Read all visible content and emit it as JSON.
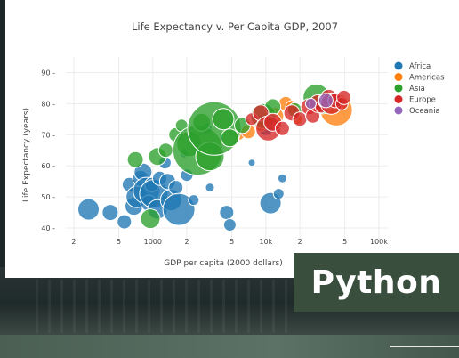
{
  "chart_data": {
    "type": "scatter",
    "title": "Life Expectancy v. Per Capita GDP, 2007",
    "xlabel": "GDP per capita (2000 dollars)",
    "ylabel": "Life Expectancy (years)",
    "x_scale": "log",
    "xlim": [
      170,
      120000
    ],
    "ylim": [
      36,
      95
    ],
    "x_ticks": [
      {
        "value": 200,
        "label": "2"
      },
      {
        "value": 500,
        "label": "5"
      },
      {
        "value": 1000,
        "label": "1000"
      },
      {
        "value": 2000,
        "label": "2"
      },
      {
        "value": 5000,
        "label": "5"
      },
      {
        "value": 10000,
        "label": "10k"
      },
      {
        "value": 20000,
        "label": "2"
      },
      {
        "value": 50000,
        "label": "5"
      },
      {
        "value": 100000,
        "label": "100k"
      }
    ],
    "y_ticks": [
      40,
      50,
      60,
      70,
      80,
      90
    ],
    "grid": true,
    "legend_position": "right",
    "series": [
      {
        "name": "Africa",
        "color": "#1f77b4",
        "points": [
          [
            270,
            46,
            12
          ],
          [
            420,
            45,
            9
          ],
          [
            560,
            42,
            8
          ],
          [
            620,
            54,
            8
          ],
          [
            680,
            47,
            10
          ],
          [
            720,
            50,
            12
          ],
          [
            780,
            56,
            9
          ],
          [
            820,
            58,
            10
          ],
          [
            880,
            52,
            15
          ],
          [
            920,
            48,
            9
          ],
          [
            980,
            54,
            8
          ],
          [
            1020,
            51,
            16
          ],
          [
            1100,
            46,
            11
          ],
          [
            1150,
            56,
            8
          ],
          [
            1280,
            61,
            7
          ],
          [
            1350,
            55,
            9
          ],
          [
            1450,
            49,
            12
          ],
          [
            1600,
            53,
            8
          ],
          [
            1700,
            46,
            18
          ],
          [
            2000,
            57,
            7
          ],
          [
            2300,
            49,
            6
          ],
          [
            3200,
            53,
            5
          ],
          [
            4500,
            45,
            8
          ],
          [
            4800,
            41,
            7
          ],
          [
            7500,
            61,
            4
          ],
          [
            11000,
            48,
            12
          ],
          [
            13000,
            51,
            6
          ],
          [
            14000,
            56,
            5
          ],
          [
            1900,
            64,
            5
          ],
          [
            3000,
            72,
            6
          ],
          [
            10000,
            72,
            8
          ]
        ]
      },
      {
        "name": "Americas",
        "color": "#ff7f0e",
        "points": [
          [
            5800,
            70,
            6
          ],
          [
            7000,
            71,
            8
          ],
          [
            9000,
            73,
            7
          ],
          [
            10500,
            74,
            6
          ],
          [
            12000,
            76,
            10
          ],
          [
            15000,
            80,
            8
          ],
          [
            17000,
            79,
            7
          ],
          [
            19000,
            75,
            6
          ],
          [
            36000,
            80,
            10
          ],
          [
            42000,
            78,
            18
          ]
        ]
      },
      {
        "name": "Asia",
        "color": "#2ca02c",
        "points": [
          [
            700,
            62,
            9
          ],
          [
            950,
            43,
            11
          ],
          [
            1100,
            63,
            10
          ],
          [
            1300,
            65,
            8
          ],
          [
            1600,
            70,
            8
          ],
          [
            1800,
            73,
            7
          ],
          [
            2100,
            67,
            14
          ],
          [
            2500,
            65,
            28
          ],
          [
            2700,
            74,
            10
          ],
          [
            3200,
            63,
            16
          ],
          [
            3500,
            72,
            30
          ],
          [
            4200,
            75,
            12
          ],
          [
            4800,
            69,
            10
          ],
          [
            6200,
            73,
            9
          ],
          [
            9500,
            76,
            14
          ],
          [
            11500,
            79,
            9
          ],
          [
            18000,
            78,
            8
          ],
          [
            28000,
            82,
            15
          ],
          [
            32000,
            79,
            8
          ],
          [
            39000,
            81,
            9
          ]
        ]
      },
      {
        "name": "Europe",
        "color": "#d62728",
        "points": [
          [
            7500,
            75,
            7
          ],
          [
            9000,
            77,
            9
          ],
          [
            10500,
            72,
            14
          ],
          [
            11500,
            74,
            10
          ],
          [
            14000,
            72,
            8
          ],
          [
            17000,
            77,
            9
          ],
          [
            20000,
            75,
            8
          ],
          [
            24000,
            79,
            9
          ],
          [
            26000,
            76,
            8
          ],
          [
            29000,
            80,
            10
          ],
          [
            31000,
            79,
            7
          ],
          [
            34000,
            81,
            9
          ],
          [
            36000,
            82,
            9
          ],
          [
            38000,
            80,
            12
          ],
          [
            41000,
            81,
            8
          ],
          [
            47000,
            80,
            7
          ],
          [
            49000,
            82,
            8
          ]
        ]
      },
      {
        "name": "Oceania",
        "color": "#9467bd",
        "points": [
          [
            25000,
            80,
            6
          ],
          [
            34000,
            81,
            8
          ]
        ]
      }
    ]
  }
}
